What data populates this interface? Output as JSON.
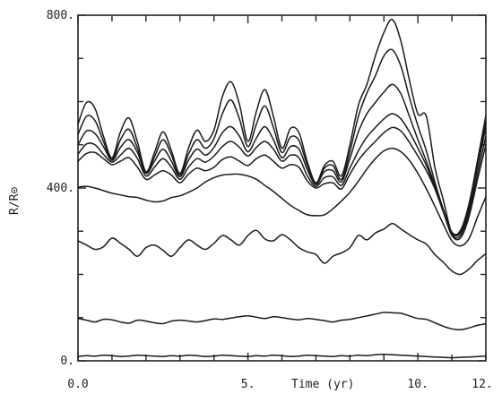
{
  "chart_data": {
    "type": "line",
    "xlabel": "Time (yr)",
    "ylabel": "R/R⊙",
    "xlim": [
      0,
      12
    ],
    "ylim": [
      0,
      800
    ],
    "x_ticks": [
      {
        "value": 0,
        "label": "0.0"
      },
      {
        "value": 5,
        "label": "5."
      },
      {
        "value": 10,
        "label": "10."
      },
      {
        "value": 12,
        "label": "12."
      }
    ],
    "y_ticks": [
      {
        "value": 0,
        "label": "0."
      },
      {
        "value": 400,
        "label": "400."
      },
      {
        "value": 800,
        "label": "800."
      }
    ],
    "x_minor_ticks": [
      1,
      2,
      3,
      4,
      6,
      7,
      8,
      9,
      11
    ],
    "grid": false,
    "colors": {
      "ink": "#1a1a1a",
      "background": "#ffffff"
    },
    "series": [
      {
        "x": [
          0,
          0.25,
          0.5,
          0.75,
          1,
          1.25,
          1.5,
          1.75,
          2,
          2.25,
          2.5,
          2.75,
          3,
          3.25,
          3.5,
          3.75,
          4,
          4.25,
          4.5,
          4.75,
          5,
          5.25,
          5.5,
          5.75,
          6,
          6.25,
          6.5,
          6.75,
          7,
          7.25,
          7.5,
          7.75,
          8,
          8.25,
          8.5,
          8.75,
          9,
          9.25,
          9.5,
          9.75,
          10,
          10.25,
          10.5,
          10.75,
          11,
          11.25,
          11.5,
          11.75,
          12
        ],
        "values": [
          10,
          12,
          11,
          13,
          12,
          10,
          11,
          13,
          12,
          11,
          10,
          12,
          11,
          13,
          12,
          10,
          11,
          13,
          12,
          11,
          10,
          12,
          11,
          13,
          12,
          10,
          11,
          13,
          12,
          11,
          10,
          12,
          11,
          13,
          12,
          14,
          15,
          14,
          13,
          12,
          11,
          10,
          9,
          8,
          7,
          8,
          9,
          10,
          11
        ]
      },
      {
        "x": [
          0,
          0.25,
          0.5,
          0.75,
          1,
          1.25,
          1.5,
          1.75,
          2,
          2.25,
          2.5,
          2.75,
          3,
          3.25,
          3.5,
          3.75,
          4,
          4.25,
          4.5,
          4.75,
          5,
          5.25,
          5.5,
          5.75,
          6,
          6.25,
          6.5,
          6.75,
          7,
          7.25,
          7.5,
          7.75,
          8,
          8.25,
          8.5,
          8.75,
          9,
          9.25,
          9.5,
          9.75,
          10,
          10.25,
          10.5,
          10.75,
          11,
          11.25,
          11.5,
          11.75,
          12
        ],
        "values": [
          98,
          94,
          90,
          96,
          95,
          90,
          87,
          94,
          92,
          88,
          86,
          92,
          94,
          92,
          90,
          93,
          97,
          96,
          99,
          102,
          104,
          101,
          98,
          102,
          100,
          97,
          95,
          98,
          96,
          93,
          90,
          94,
          96,
          100,
          104,
          108,
          112,
          111,
          110,
          104,
          98,
          96,
          88,
          80,
          74,
          72,
          76,
          82,
          86
        ]
      },
      {
        "x": [
          0,
          0.25,
          0.5,
          0.75,
          1,
          1.25,
          1.5,
          1.75,
          2,
          2.25,
          2.5,
          2.75,
          3,
          3.25,
          3.5,
          3.75,
          4,
          4.25,
          4.5,
          4.75,
          5,
          5.25,
          5.5,
          5.75,
          6,
          6.25,
          6.5,
          6.75,
          7,
          7.25,
          7.5,
          7.75,
          8,
          8.25,
          8.5,
          8.75,
          9,
          9.25,
          9.5,
          9.75,
          10,
          10.25,
          10.5,
          10.75,
          11,
          11.25,
          11.5,
          11.75,
          12
        ],
        "values": [
          278,
          268,
          258,
          264,
          284,
          272,
          258,
          242,
          262,
          268,
          256,
          242,
          262,
          280,
          268,
          258,
          272,
          290,
          280,
          268,
          290,
          302,
          282,
          278,
          292,
          280,
          262,
          252,
          246,
          226,
          242,
          250,
          262,
          290,
          280,
          296,
          305,
          318,
          305,
          292,
          280,
          270,
          246,
          228,
          208,
          200,
          212,
          232,
          248
        ]
      },
      {
        "x": [
          0,
          0.25,
          0.5,
          0.75,
          1,
          1.25,
          1.5,
          1.75,
          2,
          2.25,
          2.5,
          2.75,
          3,
          3.25,
          3.5,
          3.75,
          4,
          4.25,
          4.5,
          4.75,
          5,
          5.25,
          5.5,
          5.75,
          6,
          6.25,
          6.5,
          6.75,
          7,
          7.25,
          7.5,
          7.75,
          8,
          8.25,
          8.5,
          8.75,
          9,
          9.25,
          9.5,
          9.75,
          10,
          10.25,
          10.5,
          10.75,
          11,
          11.25,
          11.5,
          11.75,
          12
        ],
        "values": [
          402,
          404,
          400,
          394,
          388,
          384,
          380,
          378,
          372,
          368,
          370,
          378,
          382,
          390,
          400,
          414,
          424,
          430,
          432,
          432,
          428,
          420,
          406,
          392,
          376,
          360,
          348,
          338,
          336,
          338,
          352,
          370,
          390,
          416,
          444,
          468,
          486,
          492,
          484,
          464,
          434,
          398,
          358,
          316,
          278,
          266,
          282,
          332,
          380
        ]
      },
      {
        "x": [
          0,
          0.25,
          0.5,
          0.75,
          1,
          1.25,
          1.5,
          1.75,
          2,
          2.25,
          2.5,
          2.75,
          3,
          3.25,
          3.5,
          3.75,
          4,
          4.25,
          4.5,
          4.75,
          5,
          5.25,
          5.5,
          5.75,
          6,
          6.25,
          6.5,
          6.75,
          7,
          7.25,
          7.5,
          7.75,
          8,
          8.25,
          8.5,
          8.75,
          9,
          9.25,
          9.5,
          9.75,
          10,
          10.25,
          10.5,
          10.75,
          11,
          11.25,
          11.5,
          11.75,
          12
        ],
        "values": [
          462,
          480,
          482,
          468,
          454,
          462,
          470,
          448,
          420,
          430,
          440,
          430,
          412,
          432,
          446,
          440,
          448,
          466,
          472,
          462,
          452,
          468,
          476,
          462,
          446,
          454,
          448,
          416,
          400,
          410,
          412,
          398,
          432,
          464,
          488,
          508,
          528,
          540,
          532,
          506,
          474,
          440,
          398,
          344,
          290,
          284,
          332,
          418,
          500
        ]
      },
      {
        "x": [
          0,
          0.25,
          0.5,
          0.75,
          1,
          1.25,
          1.5,
          1.75,
          2,
          2.25,
          2.5,
          2.75,
          3,
          3.25,
          3.5,
          3.75,
          4,
          4.25,
          4.5,
          4.75,
          5,
          5.25,
          5.5,
          5.75,
          6,
          6.25,
          6.5,
          6.75,
          7,
          7.25,
          7.5,
          7.75,
          8,
          8.25,
          8.5,
          8.75,
          9,
          9.25,
          9.5,
          9.75,
          10,
          10.25,
          10.5,
          10.75,
          11,
          11.25,
          11.5,
          11.75,
          12
        ],
        "values": [
          478,
          502,
          500,
          478,
          460,
          476,
          492,
          468,
          428,
          448,
          468,
          448,
          420,
          448,
          468,
          460,
          474,
          496,
          508,
          494,
          474,
          494,
          508,
          490,
          462,
          476,
          470,
          428,
          404,
          424,
          426,
          406,
          446,
          486,
          518,
          540,
          560,
          572,
          560,
          530,
          492,
          452,
          400,
          346,
          292,
          290,
          342,
          432,
          520
        ]
      },
      {
        "x": [
          0,
          0.25,
          0.5,
          0.75,
          1,
          1.25,
          1.5,
          1.75,
          2,
          2.25,
          2.5,
          2.75,
          3,
          3.25,
          3.5,
          3.75,
          4,
          4.25,
          4.5,
          4.75,
          5,
          5.25,
          5.5,
          5.75,
          6,
          6.25,
          6.5,
          6.75,
          7,
          7.25,
          7.5,
          7.75,
          8,
          8.25,
          8.5,
          8.75,
          9,
          9.25,
          9.5,
          9.75,
          10,
          10.25,
          10.5,
          10.75,
          11,
          11.25,
          11.5,
          11.75,
          12
        ],
        "values": [
          500,
          532,
          526,
          496,
          464,
          494,
          512,
          482,
          434,
          462,
          490,
          462,
          426,
          464,
          490,
          476,
          494,
          528,
          542,
          520,
          484,
          516,
          542,
          512,
          470,
          496,
          490,
          442,
          408,
          438,
          440,
          414,
          468,
          530,
          572,
          598,
          622,
          640,
          618,
          566,
          512,
          462,
          406,
          350,
          296,
          296,
          352,
          448,
          540
        ]
      },
      {
        "x": [
          0,
          0.25,
          0.5,
          0.75,
          1,
          1.25,
          1.5,
          1.75,
          2,
          2.25,
          2.5,
          2.75,
          3,
          3.25,
          3.5,
          3.75,
          4,
          4.25,
          4.5,
          4.75,
          5,
          5.25,
          5.5,
          5.75,
          6,
          6.25,
          6.5,
          6.75,
          7,
          7.25,
          7.5,
          7.75,
          8,
          8.25,
          8.5,
          8.75,
          9,
          9.25,
          9.5,
          9.75,
          10,
          10.25,
          10.5,
          10.75,
          11,
          11.25,
          11.5,
          11.75,
          12
        ],
        "values": [
          524,
          566,
          556,
          508,
          466,
          512,
          536,
          492,
          436,
          472,
          512,
          476,
          430,
          478,
          512,
          492,
          514,
          572,
          604,
          560,
          496,
          548,
          590,
          540,
          482,
          518,
          510,
          452,
          410,
          446,
          452,
          420,
          484,
          566,
          620,
          660,
          706,
          720,
          682,
          610,
          544,
          486,
          414,
          350,
          298,
          300,
          358,
          456,
          552
        ]
      },
      {
        "x": [
          0,
          0.25,
          0.5,
          0.75,
          1,
          1.25,
          1.5,
          1.75,
          2,
          2.25,
          2.5,
          2.75,
          3,
          3.25,
          3.5,
          3.75,
          4,
          4.25,
          4.5,
          4.75,
          5,
          5.25,
          5.5,
          5.75,
          6,
          6.25,
          6.5,
          6.75,
          7,
          7.25,
          7.5,
          7.75,
          8,
          8.25,
          8.5,
          8.75,
          9,
          9.25,
          9.5,
          9.75,
          10,
          10.25,
          10.5,
          10.75,
          11,
          11.25,
          11.5,
          11.75,
          12
        ],
        "values": [
          548,
          598,
          584,
          520,
          470,
          530,
          562,
          506,
          438,
          482,
          530,
          486,
          434,
          492,
          534,
          508,
          534,
          612,
          646,
          594,
          508,
          578,
          628,
          566,
          492,
          538,
          528,
          460,
          412,
          452,
          462,
          428,
          500,
          592,
          640,
          706,
          760,
          790,
          740,
          650,
          572,
          566,
          448,
          372,
          296,
          302,
          362,
          462,
          568
        ]
      }
    ]
  }
}
